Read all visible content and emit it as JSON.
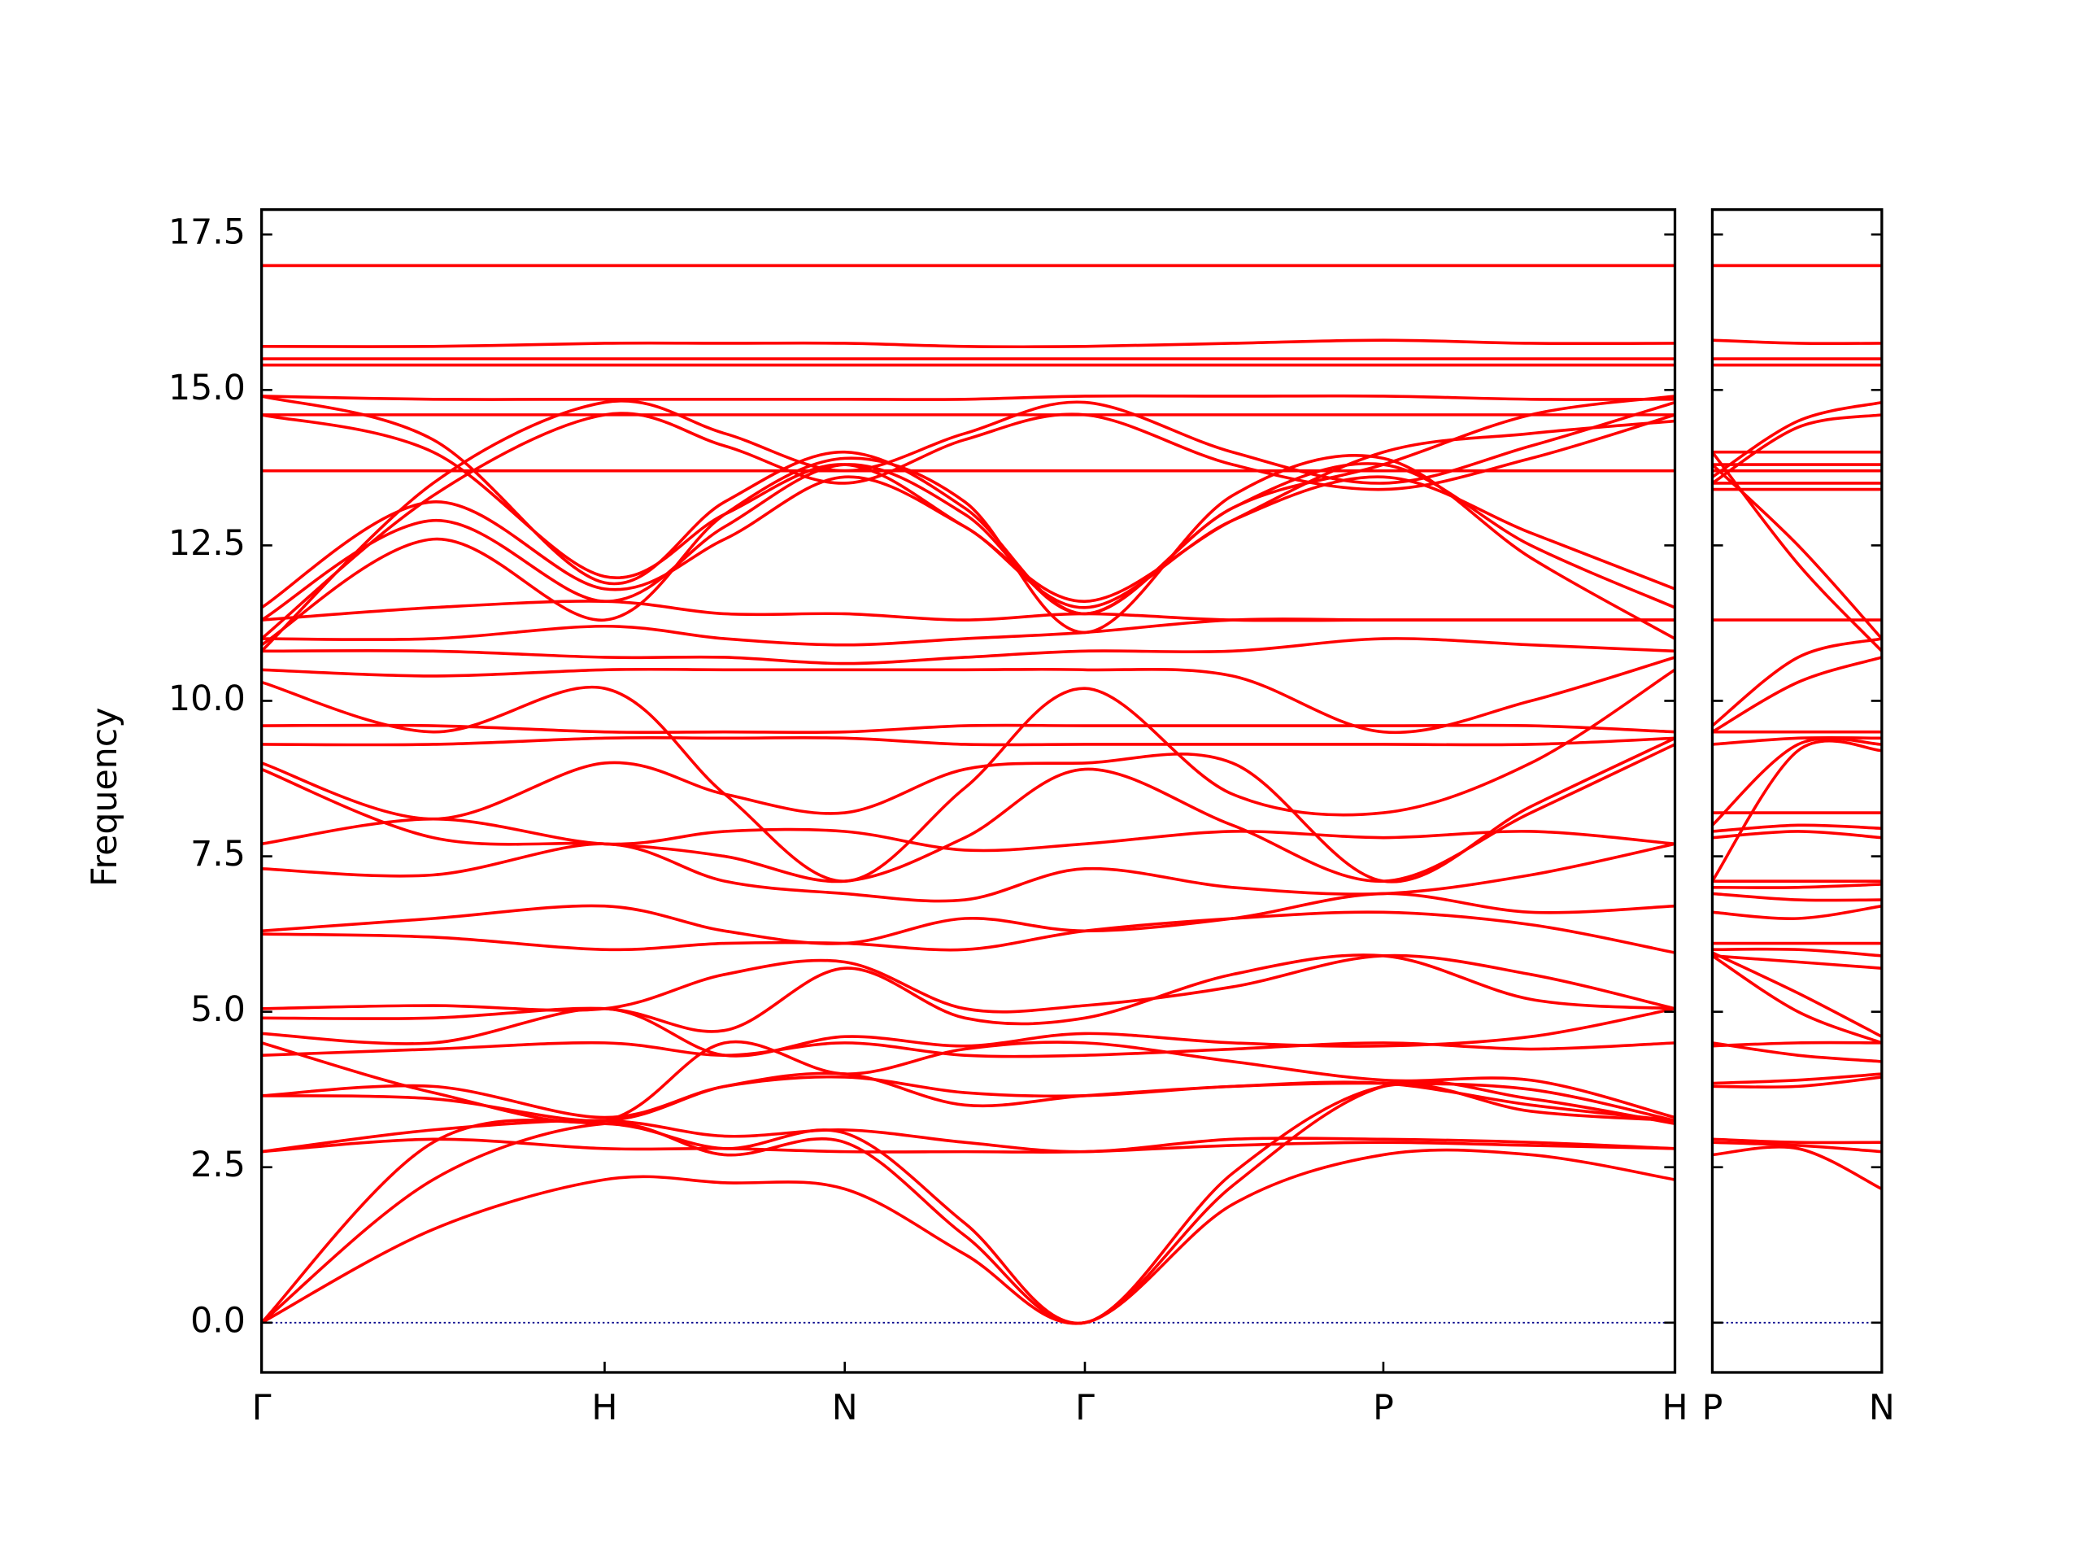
{
  "chart_data": [
    {
      "type": "line",
      "ylabel": "Frequency",
      "color": "red",
      "x": [
        0,
        0.5,
        1.0,
        1.35,
        1.7,
        2.05,
        2.4,
        2.83,
        3.27,
        3.7,
        4.12
      ],
      "xlim": [
        0,
        4.12
      ],
      "xticks": [
        {
          "value": 0,
          "label": "Γ"
        },
        {
          "value": 1.0,
          "label": "H"
        },
        {
          "value": 1.7,
          "label": "N"
        },
        {
          "value": 2.4,
          "label": "Γ"
        },
        {
          "value": 3.27,
          "label": "P"
        },
        {
          "value": 4.12,
          "label": "H"
        }
      ],
      "ylim": [
        -0.8,
        17.9
      ],
      "yticks": [
        {
          "value": 0,
          "label": "0.0"
        },
        2.5,
        {
          "value": 5,
          "label": "5.0"
        },
        7.5,
        {
          "value": 10,
          "label": "10.0"
        },
        12.5,
        {
          "value": 15,
          "label": "15.0"
        },
        17.5
      ],
      "hline": 0,
      "hline_color": "#00008b",
      "series": [
        {
          "values": [
            0,
            1.5,
            2.3,
            2.25,
            2.15,
            1.1,
            0,
            1.9,
            2.7,
            2.7,
            2.3
          ]
        },
        {
          "values": [
            0,
            2.3,
            3.2,
            2.7,
            2.9,
            1.4,
            0,
            2.2,
            3.8,
            3.6,
            3.2
          ]
        },
        {
          "values": [
            0,
            2.9,
            3.2,
            2.8,
            3.05,
            1.6,
            0,
            2.4,
            3.8,
            3.4,
            3.25
          ]
        },
        {
          "values": [
            2.75,
            2.95,
            2.8,
            2.8,
            2.75,
            2.75,
            2.75,
            2.85,
            2.9,
            2.85,
            2.8
          ]
        },
        {
          "values": [
            2.75,
            3.1,
            3.25,
            3.0,
            3.1,
            2.9,
            2.75,
            2.95,
            2.95,
            2.9,
            2.8
          ]
        },
        {
          "values": [
            3.65,
            3.6,
            3.25,
            3.8,
            4.0,
            3.5,
            3.65,
            3.8,
            3.85,
            3.75,
            3.25
          ]
        },
        {
          "values": [
            3.65,
            3.8,
            3.3,
            3.8,
            3.95,
            3.7,
            3.65,
            3.8,
            3.85,
            3.5,
            3.25
          ]
        },
        {
          "values": [
            4.3,
            4.4,
            4.5,
            4.3,
            4.5,
            4.3,
            4.3,
            4.4,
            4.5,
            4.4,
            4.5
          ]
        },
        {
          "values": [
            4.5,
            3.7,
            3.25,
            4.5,
            4.0,
            4.4,
            4.5,
            4.2,
            3.9,
            3.9,
            3.3
          ]
        },
        {
          "values": [
            4.65,
            4.5,
            5.05,
            4.3,
            4.6,
            4.45,
            4.65,
            4.5,
            4.45,
            4.6,
            5.05
          ]
        },
        {
          "values": [
            4.9,
            4.9,
            5.05,
            4.7,
            5.7,
            4.9,
            4.9,
            5.6,
            5.9,
            5.2,
            5.05
          ]
        },
        {
          "values": [
            5.05,
            5.1,
            5.05,
            5.6,
            5.8,
            5.05,
            5.1,
            5.4,
            5.9,
            5.6,
            5.05
          ]
        },
        {
          "values": [
            6.25,
            6.2,
            6.0,
            6.1,
            6.1,
            6.0,
            6.3,
            6.5,
            6.6,
            6.4,
            5.95
          ]
        },
        {
          "values": [
            6.3,
            6.5,
            6.7,
            6.3,
            6.1,
            6.5,
            6.3,
            6.5,
            6.9,
            6.6,
            6.7
          ]
        },
        {
          "values": [
            7.3,
            7.2,
            7.7,
            7.1,
            6.9,
            6.8,
            7.3,
            7.0,
            6.9,
            7.2,
            7.7
          ]
        },
        {
          "values": [
            7.7,
            8.1,
            7.7,
            7.9,
            7.9,
            7.6,
            7.7,
            7.9,
            7.8,
            7.9,
            7.7
          ]
        },
        {
          "values": [
            8.9,
            7.8,
            7.7,
            7.5,
            7.1,
            7.8,
            8.9,
            8.0,
            7.1,
            8.2,
            9.3
          ]
        },
        {
          "values": [
            9.0,
            8.1,
            9.0,
            8.5,
            8.2,
            8.9,
            9.0,
            9.0,
            7.1,
            8.3,
            9.4
          ]
        },
        {
          "values": [
            9.3,
            9.3,
            9.4,
            9.4,
            9.4,
            9.3,
            9.3,
            9.3,
            9.3,
            9.3,
            9.4
          ]
        },
        {
          "values": [
            9.6,
            9.6,
            9.5,
            9.5,
            9.5,
            9.6,
            9.6,
            9.6,
            9.6,
            9.6,
            9.5
          ]
        },
        {
          "values": [
            10.3,
            9.5,
            10.2,
            8.5,
            7.1,
            8.6,
            10.2,
            8.5,
            8.2,
            9.0,
            10.5
          ]
        },
        {
          "values": [
            10.5,
            10.4,
            10.5,
            10.5,
            10.5,
            10.5,
            10.5,
            10.4,
            9.5,
            10.0,
            10.7
          ]
        },
        {
          "values": [
            10.8,
            10.8,
            10.7,
            10.7,
            10.6,
            10.7,
            10.8,
            10.8,
            11.0,
            10.9,
            10.8
          ]
        },
        {
          "values": [
            11.0,
            11.0,
            11.2,
            11.0,
            10.9,
            11.0,
            11.1,
            11.3,
            11.3,
            11.3,
            11.3
          ]
        },
        {
          "values": [
            11.3,
            11.5,
            11.6,
            11.4,
            11.4,
            11.3,
            11.4,
            11.3,
            11.3,
            11.3,
            11.3
          ]
        },
        {
          "values": [
            11.5,
            13.2,
            11.8,
            12.6,
            13.6,
            12.8,
            11.5,
            12.9,
            13.6,
            12.7,
            11.8
          ]
        },
        {
          "values": [
            11.3,
            12.9,
            11.6,
            12.8,
            13.8,
            13.0,
            11.4,
            13.1,
            13.8,
            12.5,
            11.5
          ]
        },
        {
          "values": [
            10.9,
            12.6,
            11.3,
            13.0,
            13.9,
            13.2,
            11.1,
            13.3,
            13.9,
            12.3,
            11.0
          ]
        },
        {
          "values": [
            10.8,
            13.5,
            14.8,
            14.3,
            13.7,
            14.3,
            14.8,
            14.0,
            13.5,
            14.1,
            14.8
          ]
        },
        {
          "values": [
            11.0,
            13.3,
            14.6,
            14.1,
            13.5,
            14.2,
            14.6,
            13.8,
            13.4,
            13.9,
            14.6
          ]
        },
        {
          "values": [
            13.7,
            13.7,
            13.7,
            13.7,
            13.7,
            13.7,
            13.7,
            13.7,
            13.7,
            13.7,
            13.7
          ]
        },
        {
          "values": [
            14.6,
            14.0,
            12.0,
            13.0,
            13.8,
            12.8,
            11.6,
            12.9,
            14.0,
            14.3,
            14.5
          ]
        },
        {
          "values": [
            14.9,
            14.2,
            11.9,
            13.2,
            14.0,
            13.1,
            11.4,
            13.1,
            13.8,
            14.6,
            14.9
          ]
        },
        {
          "values": [
            14.6,
            14.6,
            14.6,
            14.6,
            14.6,
            14.6,
            14.6,
            14.6,
            14.6,
            14.6,
            14.6
          ]
        },
        {
          "values": [
            14.9,
            14.85,
            14.85,
            14.85,
            14.85,
            14.85,
            14.9,
            14.9,
            14.9,
            14.85,
            14.85
          ]
        },
        {
          "values": [
            15.4,
            15.4,
            15.4,
            15.4,
            15.4,
            15.4,
            15.4,
            15.4,
            15.4,
            15.4,
            15.4
          ]
        },
        {
          "values": [
            15.5,
            15.5,
            15.5,
            15.5,
            15.5,
            15.5,
            15.5,
            15.5,
            15.5,
            15.5,
            15.5
          ]
        },
        {
          "values": [
            15.7,
            15.7,
            15.75,
            15.75,
            15.75,
            15.7,
            15.7,
            15.75,
            15.8,
            15.75,
            15.75
          ]
        },
        {
          "values": [
            17.0,
            17.0,
            17.0,
            17.0,
            17.0,
            17.0,
            17.0,
            17.0,
            17.0,
            17.0,
            17.0
          ]
        }
      ]
    },
    {
      "type": "line",
      "color": "red",
      "x": [
        0,
        0.25,
        0.494
      ],
      "xlim": [
        0,
        0.494
      ],
      "xticks": [
        {
          "value": 0,
          "label": "P"
        },
        {
          "value": 0.494,
          "label": "N"
        }
      ],
      "ylim": [
        -0.8,
        17.9
      ],
      "yticks": [
        0,
        2.5,
        5,
        7.5,
        10,
        12.5,
        15,
        17.5
      ],
      "hline": 0,
      "hline_color": "#00008b",
      "series": [
        {
          "values": [
            2.7,
            2.8,
            2.15
          ]
        },
        {
          "values": [
            2.9,
            2.85,
            2.75
          ]
        },
        {
          "values": [
            2.95,
            2.9,
            2.9
          ]
        },
        {
          "values": [
            3.8,
            3.8,
            3.95
          ]
        },
        {
          "values": [
            3.85,
            3.9,
            4.0
          ]
        },
        {
          "values": [
            4.5,
            4.3,
            4.2
          ]
        },
        {
          "values": [
            4.45,
            4.5,
            4.5
          ]
        },
        {
          "values": [
            5.9,
            5.0,
            4.5
          ]
        },
        {
          "values": [
            5.95,
            5.3,
            4.6
          ]
        },
        {
          "values": [
            5.9,
            5.8,
            5.7
          ]
        },
        {
          "values": [
            6.0,
            6.0,
            5.9
          ]
        },
        {
          "values": [
            6.1,
            6.1,
            6.1
          ]
        },
        {
          "values": [
            6.6,
            6.5,
            6.7
          ]
        },
        {
          "values": [
            6.9,
            6.8,
            6.8
          ]
        },
        {
          "values": [
            7.0,
            7.0,
            7.05
          ]
        },
        {
          "values": [
            7.1,
            7.1,
            7.1
          ]
        },
        {
          "values": [
            7.8,
            7.9,
            7.8
          ]
        },
        {
          "values": [
            7.9,
            8.0,
            7.95
          ]
        },
        {
          "values": [
            8.2,
            8.2,
            8.2
          ]
        },
        {
          "values": [
            7.1,
            9.2,
            9.2
          ]
        },
        {
          "values": [
            8.0,
            9.3,
            9.3
          ]
        },
        {
          "values": [
            9.3,
            9.4,
            9.4
          ]
        },
        {
          "values": [
            9.5,
            9.5,
            9.5
          ]
        },
        {
          "values": [
            9.5,
            10.3,
            10.7
          ]
        },
        {
          "values": [
            9.6,
            10.7,
            11.0
          ]
        },
        {
          "values": [
            11.3,
            11.3,
            11.3
          ]
        },
        {
          "values": [
            13.4,
            13.4,
            13.4
          ]
        },
        {
          "values": [
            13.5,
            13.5,
            13.5
          ]
        },
        {
          "values": [
            13.7,
            13.7,
            13.7
          ]
        },
        {
          "values": [
            13.8,
            13.8,
            13.8
          ]
        },
        {
          "values": [
            14.0,
            14.0,
            14.0
          ]
        },
        {
          "values": [
            14.0,
            12.2,
            10.8
          ]
        },
        {
          "values": [
            13.8,
            12.5,
            11.0
          ]
        },
        {
          "values": [
            13.6,
            14.5,
            14.8
          ]
        },
        {
          "values": [
            13.5,
            14.4,
            14.6
          ]
        },
        {
          "values": [
            15.4,
            15.4,
            15.4
          ]
        },
        {
          "values": [
            15.5,
            15.5,
            15.5
          ]
        },
        {
          "values": [
            15.8,
            15.75,
            15.75
          ]
        },
        {
          "values": [
            17.0,
            17.0,
            17.0
          ]
        }
      ]
    }
  ]
}
